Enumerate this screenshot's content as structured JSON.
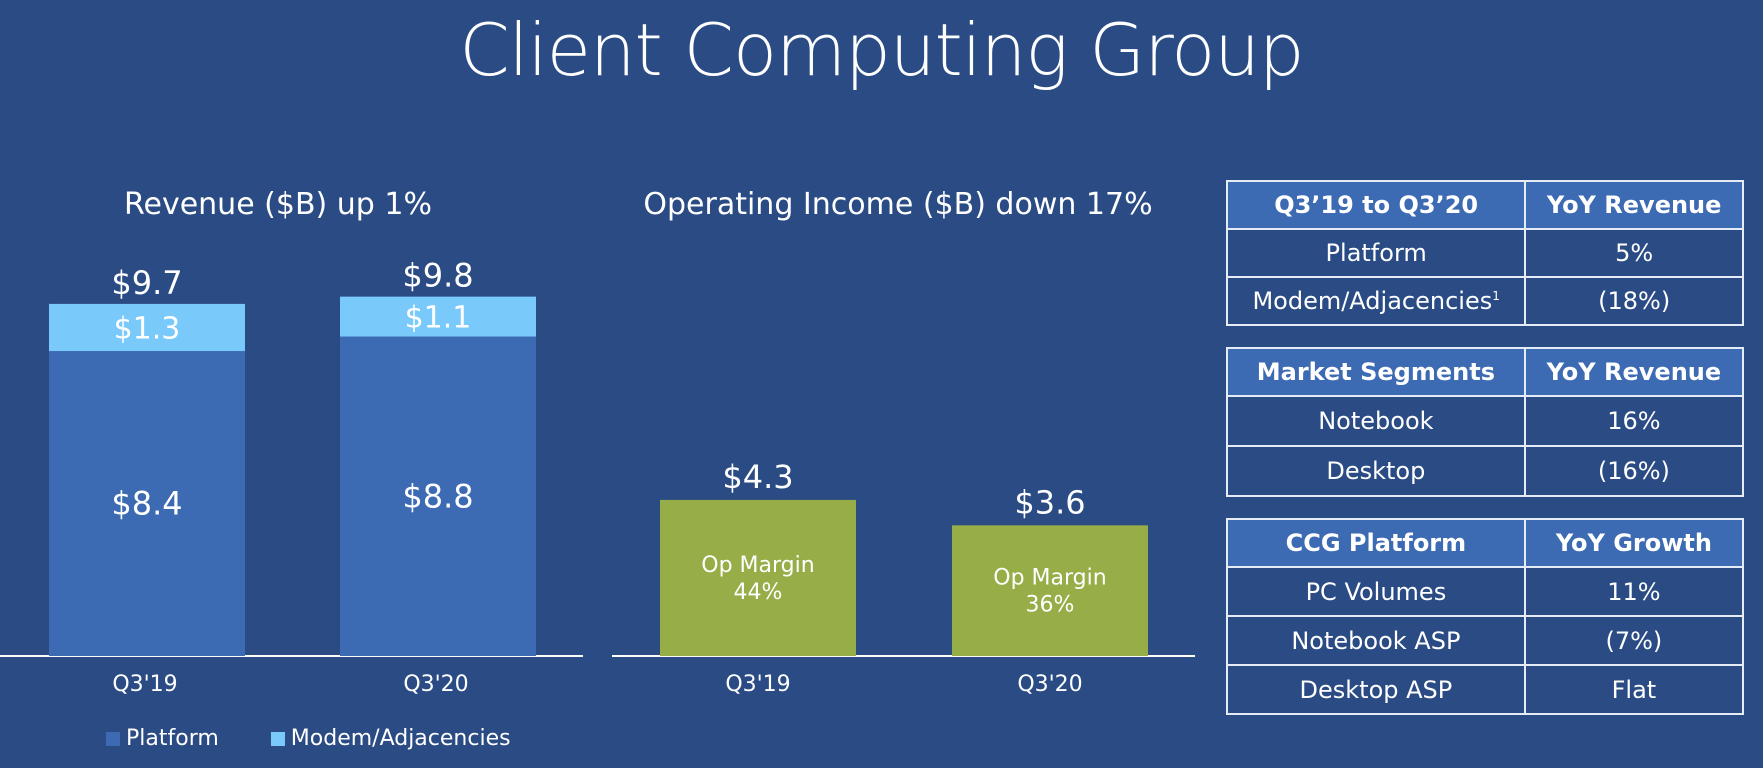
{
  "title": "Client Computing Group",
  "colors": {
    "background": "#2a4b84",
    "platform": "#3c6ab3",
    "modem": "#79c9fb",
    "income": "#96ad48",
    "table_header": "#3c6ab3"
  },
  "chart_data": [
    {
      "type": "bar",
      "stacked": true,
      "title": "Revenue ($B) up 1%",
      "categories": [
        "Q3'19",
        "Q3'20"
      ],
      "series": [
        {
          "name": "Platform",
          "values": [
            8.4,
            8.8
          ],
          "labels": [
            "$8.4",
            "$8.8"
          ],
          "color": "#3c6ab3"
        },
        {
          "name": "Modem/Adjacencies",
          "values": [
            1.3,
            1.1
          ],
          "labels": [
            "$1.3",
            "$1.1"
          ],
          "color": "#79c9fb"
        }
      ],
      "totals": [
        "$9.7",
        "$9.8"
      ],
      "ylim": [
        0,
        9.8
      ],
      "legend": "bottom-left"
    },
    {
      "type": "bar",
      "title": "Operating Income ($B) down 17%",
      "categories": [
        "Q3'19",
        "Q3'20"
      ],
      "values": [
        4.3,
        3.6
      ],
      "value_labels": [
        "$4.3",
        "$3.6"
      ],
      "inner_labels": [
        [
          "Op Margin",
          "44%"
        ],
        [
          "Op Margin",
          "36%"
        ]
      ],
      "color": "#96ad48",
      "ylim": [
        0,
        9.8
      ]
    }
  ],
  "tables": [
    {
      "header": [
        "Q3’19 to Q3’20",
        "YoY Revenue"
      ],
      "rows": [
        [
          "Platform",
          "5%"
        ],
        [
          "Modem/Adjacencies",
          "(18%)"
        ]
      ]
    },
    {
      "header": [
        "Market Segments",
        "YoY Revenue"
      ],
      "rows": [
        [
          "Notebook",
          "16%"
        ],
        [
          "Desktop",
          "(16%)"
        ]
      ]
    },
    {
      "header": [
        "CCG Platform",
        "YoY Growth"
      ],
      "rows": [
        [
          "PC Volumes",
          "11%"
        ],
        [
          "Notebook ASP",
          "(7%)"
        ],
        [
          "Desktop ASP",
          "Flat"
        ]
      ]
    }
  ],
  "footnote_marker": "1"
}
